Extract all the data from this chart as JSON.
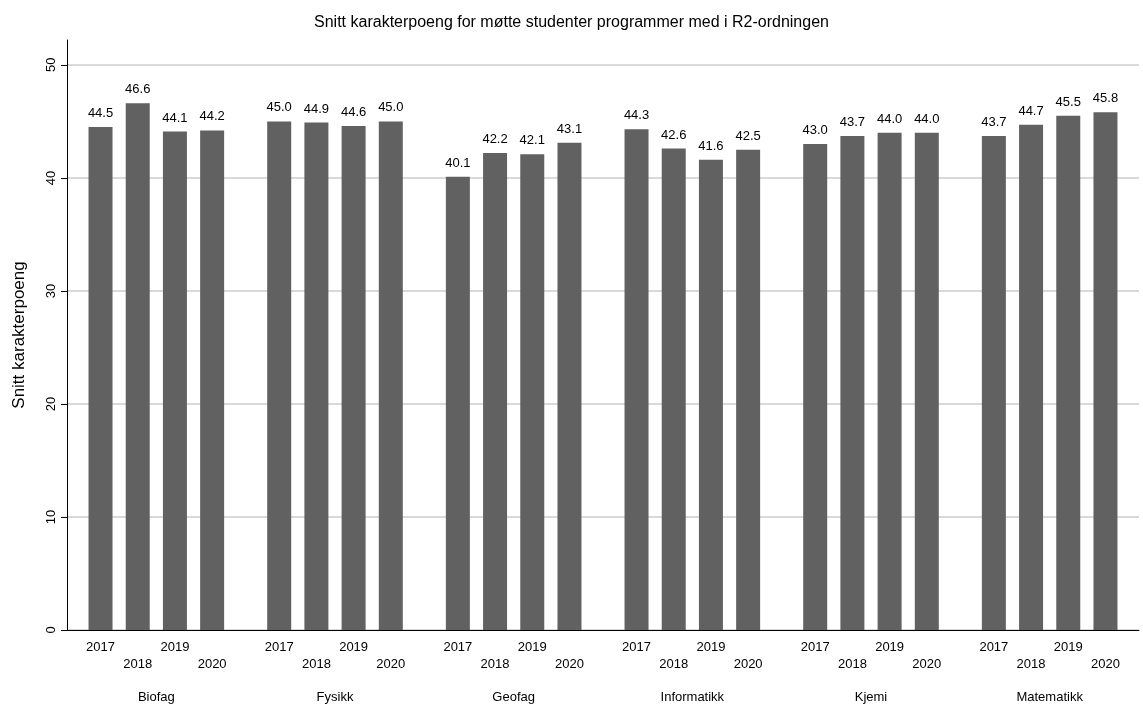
{
  "chart_data": {
    "type": "bar",
    "title": "Snitt karakterpoeng for møtte studenter programmer med i R2-ordningen",
    "ylabel": "Snitt karakterpoeng",
    "categories": [
      "Biofag",
      "Fysikk",
      "Geofag",
      "Informatikk",
      "Kjemi",
      "Matematikk"
    ],
    "series": [
      {
        "name": "2017",
        "color": "#616161",
        "values": [
          44.5,
          45.0,
          40.1,
          44.3,
          43.0,
          43.7
        ],
        "value_labels": [
          "44.5",
          "45.0",
          "40.1",
          "44.3",
          "43.0",
          "43.7"
        ]
      },
      {
        "name": "2018",
        "color": "#616161",
        "values": [
          46.6,
          44.9,
          42.2,
          42.6,
          43.7,
          44.7
        ],
        "value_labels": [
          "46.6",
          "44.9",
          "42.2",
          "42.6",
          "43.7",
          "44.7"
        ]
      },
      {
        "name": "2019",
        "color": "#616161",
        "values": [
          44.1,
          44.6,
          42.1,
          41.6,
          44.0,
          45.5
        ],
        "value_labels": [
          "44.1",
          "44.6",
          "42.1",
          "41.6",
          "44.0",
          "45.5"
        ]
      },
      {
        "name": "2020",
        "color": "#616161",
        "values": [
          44.2,
          45.0,
          43.1,
          42.5,
          44.0,
          45.8
        ],
        "value_labels": [
          "44.2",
          "45.0",
          "43.1",
          "42.5",
          "44.0",
          "45.8"
        ]
      }
    ],
    "ylim": [
      0,
      52.2
    ],
    "yticks": [
      0,
      10,
      20,
      30,
      40,
      50
    ],
    "grid": "y"
  }
}
